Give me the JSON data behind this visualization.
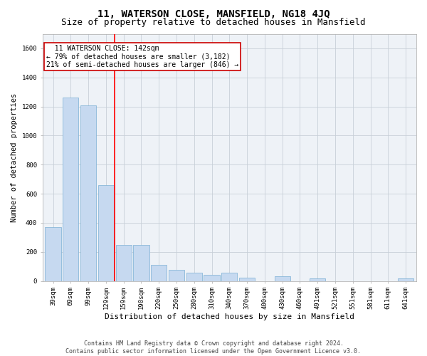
{
  "title": "11, WATERSON CLOSE, MANSFIELD, NG18 4JQ",
  "subtitle": "Size of property relative to detached houses in Mansfield",
  "xlabel": "Distribution of detached houses by size in Mansfield",
  "ylabel": "Number of detached properties",
  "categories": [
    "39sqm",
    "69sqm",
    "99sqm",
    "129sqm",
    "159sqm",
    "190sqm",
    "220sqm",
    "250sqm",
    "280sqm",
    "310sqm",
    "340sqm",
    "370sqm",
    "400sqm",
    "430sqm",
    "460sqm",
    "491sqm",
    "521sqm",
    "551sqm",
    "581sqm",
    "611sqm",
    "641sqm"
  ],
  "values": [
    370,
    1260,
    1210,
    660,
    250,
    250,
    110,
    75,
    55,
    40,
    55,
    20,
    0,
    30,
    0,
    15,
    0,
    0,
    0,
    0,
    15
  ],
  "bar_color": "#c6d9f0",
  "bar_edge_color": "#7bafd4",
  "red_line_x": 3.5,
  "annotation_text": "  11 WATERSON CLOSE: 142sqm\n← 79% of detached houses are smaller (3,182)\n21% of semi-detached houses are larger (846) →",
  "annotation_box_color": "#ffffff",
  "annotation_box_edge_color": "#cc0000",
  "ylim": [
    0,
    1700
  ],
  "yticks": [
    0,
    200,
    400,
    600,
    800,
    1000,
    1200,
    1400,
    1600
  ],
  "grid_color": "#c8d0d8",
  "background_color": "#eef2f7",
  "footer_line1": "Contains HM Land Registry data © Crown copyright and database right 2024.",
  "footer_line2": "Contains public sector information licensed under the Open Government Licence v3.0.",
  "title_fontsize": 10,
  "subtitle_fontsize": 9,
  "xlabel_fontsize": 8,
  "ylabel_fontsize": 7.5,
  "tick_fontsize": 6.5,
  "annotation_fontsize": 7,
  "footer_fontsize": 6
}
